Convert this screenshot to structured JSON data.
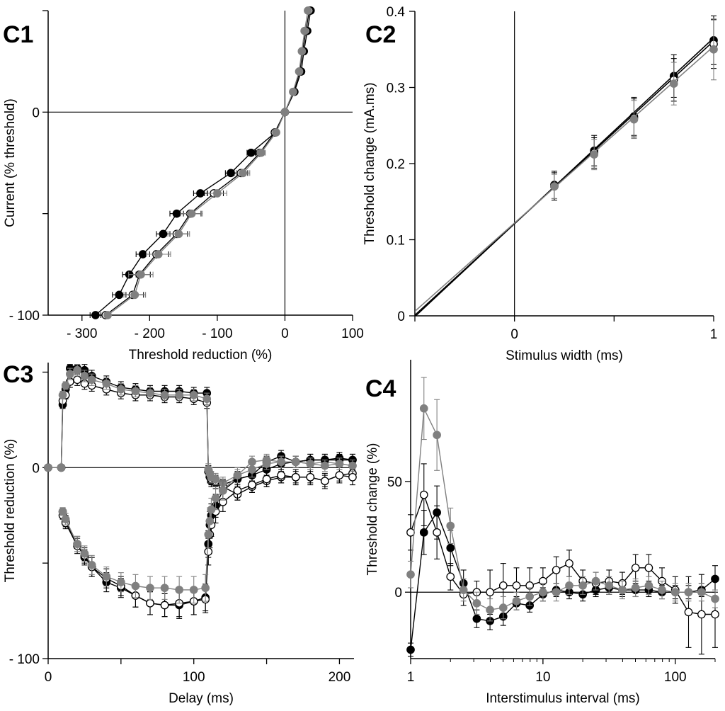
{
  "colors": {
    "black": "#000000",
    "gray": "#808080",
    "white": "#ffffff"
  },
  "series_styles": [
    {
      "name": "filled-black",
      "fill": "#000000",
      "stroke": "#000000"
    },
    {
      "name": "open-white",
      "fill": "#ffffff",
      "stroke": "#000000"
    },
    {
      "name": "filled-gray",
      "fill": "#808080",
      "stroke": "#808080"
    }
  ],
  "chart_data": [
    {
      "panel": "C1",
      "type": "line",
      "xlabel": "Threshold reduction (%)",
      "ylabel": "Current (% threshold)",
      "xlim": [
        -350,
        100
      ],
      "ylim": [
        -100,
        50
      ],
      "xticks": [
        -300,
        -200,
        -100,
        0,
        100
      ],
      "xtick_labels": [
        "- 300",
        "- 200",
        "- 100",
        "0",
        "100"
      ],
      "yticks": [
        -100,
        0
      ],
      "ytick_labels": [
        "- 100",
        "0"
      ],
      "y_minor_ticks": [
        -50,
        50
      ],
      "reference_lines": {
        "x": 0,
        "y": 0
      },
      "error_direction": "x",
      "y": [
        50,
        40,
        30,
        20,
        10,
        0,
        -10,
        -20,
        -30,
        -40,
        -50,
        -60,
        -70,
        -80,
        -90,
        -100
      ],
      "series": [
        {
          "name": "filled-black",
          "x": [
            38,
            33,
            28,
            24,
            14,
            0,
            -14,
            -50,
            -80,
            -125,
            -160,
            -180,
            -210,
            -230,
            -245,
            -280
          ],
          "err": [
            0,
            0,
            0,
            0,
            0,
            0,
            3,
            6,
            8,
            10,
            10,
            10,
            10,
            10,
            10,
            8
          ]
        },
        {
          "name": "open-white",
          "x": [
            36,
            31,
            26,
            22,
            13,
            0,
            -15,
            -37,
            -65,
            -105,
            -140,
            -160,
            -190,
            -215,
            -225,
            -265
          ],
          "err": [
            0,
            0,
            0,
            0,
            0,
            0,
            3,
            6,
            10,
            14,
            16,
            16,
            18,
            16,
            16,
            0
          ]
        },
        {
          "name": "filled-gray",
          "x": [
            34,
            29,
            25,
            21,
            12,
            0,
            -13,
            -35,
            -62,
            -100,
            -138,
            -157,
            -187,
            -213,
            -222,
            -262
          ],
          "err": [
            0,
            0,
            0,
            0,
            0,
            0,
            3,
            6,
            10,
            14,
            16,
            16,
            18,
            18,
            16,
            0
          ]
        }
      ]
    },
    {
      "panel": "C2",
      "type": "scatter",
      "xlabel": "Stimulus width (ms)",
      "ylabel": "Threshold change (mA.ms)",
      "xlim": [
        -0.5,
        1
      ],
      "ylim": [
        0,
        0.4
      ],
      "xticks": [
        0,
        1
      ],
      "xtick_labels": [
        "0",
        "1"
      ],
      "x_minor_ticks": [
        -0.5,
        0.5
      ],
      "yticks": [
        0,
        0.1,
        0.2,
        0.3,
        0.4
      ],
      "ytick_labels": [
        "0",
        "0.1",
        "0.2",
        "0.3",
        "0.4"
      ],
      "reference_lines": {
        "x": 0
      },
      "error_direction": "y",
      "x": [
        0.2,
        0.4,
        0.6,
        0.8,
        1.0
      ],
      "series": [
        {
          "name": "filled-black",
          "values": [
            0.172,
            0.217,
            0.262,
            0.315,
            0.362
          ],
          "err": [
            0.018,
            0.02,
            0.025,
            0.028,
            0.032
          ],
          "fit": {
            "slope": 0.244,
            "intercept": 0.121
          }
        },
        {
          "name": "open-white",
          "values": [
            0.17,
            0.214,
            0.26,
            0.31,
            0.357
          ],
          "err": [
            0.018,
            0.02,
            0.025,
            0.028,
            0.032
          ],
          "fit": {
            "slope": 0.24,
            "intercept": 0.121
          }
        },
        {
          "name": "filled-gray",
          "values": [
            0.17,
            0.212,
            0.258,
            0.305,
            0.35
          ],
          "err": [
            0.016,
            0.02,
            0.025,
            0.028,
            0.04
          ],
          "fit": {
            "slope": 0.232,
            "intercept": 0.122
          }
        }
      ]
    },
    {
      "panel": "C3",
      "type": "line",
      "xlabel": "Delay (ms)",
      "ylabel": "Threshold reduction (%)",
      "xlim": [
        0,
        210
      ],
      "ylim": [
        -100,
        55
      ],
      "xticks": [
        0,
        100,
        200
      ],
      "xtick_labels": [
        "0",
        "100",
        "200"
      ],
      "x_minor_ticks": [
        50,
        150
      ],
      "yticks": [
        -100,
        0
      ],
      "ytick_labels": [
        "- 100",
        "0"
      ],
      "y_minor_ticks": [
        -50,
        50
      ],
      "reference_lines": {
        "y": 0
      },
      "error_direction": "y",
      "series": [
        {
          "name": "filled-black",
          "x": [
            0,
            9,
            10,
            12,
            15,
            20,
            25,
            30,
            40,
            50,
            60,
            70,
            80,
            90,
            100,
            109,
            110,
            111,
            112,
            115,
            120,
            130,
            140,
            150,
            160,
            170,
            180,
            190,
            200,
            209
          ],
          "values": [
            0,
            0,
            33,
            41,
            52,
            52,
            51,
            48,
            45,
            42,
            41,
            40,
            40,
            40,
            39,
            39,
            -2,
            -5,
            -7,
            -8,
            -9,
            -6,
            -4,
            3,
            6,
            3,
            4,
            4,
            4,
            4
          ],
          "err": [
            0,
            0,
            2,
            2,
            2,
            2,
            3,
            3,
            3,
            3,
            3,
            3,
            3,
            3,
            3,
            3,
            3,
            3,
            3,
            3,
            3,
            3,
            3,
            3,
            3,
            3,
            3,
            3,
            3,
            3
          ]
        },
        {
          "name": "open-white",
          "x": [
            0,
            9,
            10,
            12,
            15,
            20,
            25,
            30,
            40,
            50,
            60,
            70,
            80,
            90,
            100,
            109,
            110,
            111,
            112,
            115,
            120,
            130,
            140,
            150,
            160,
            170,
            180,
            190,
            200,
            209
          ],
          "values": [
            0,
            0,
            35,
            38,
            45,
            46,
            44,
            43,
            41,
            39,
            38,
            38,
            37,
            37,
            36,
            34,
            -2,
            -4,
            -6,
            -7,
            -10,
            -14,
            -10,
            -7,
            -5,
            -5,
            -5,
            -7,
            -4,
            -3
          ],
          "err": [
            0,
            0,
            2,
            2,
            3,
            3,
            3,
            3,
            3,
            3,
            3,
            3,
            3,
            3,
            3,
            3,
            3,
            3,
            3,
            3,
            3,
            3,
            3,
            3,
            3,
            3,
            3,
            3,
            3,
            3
          ]
        },
        {
          "name": "filled-gray",
          "x": [
            0,
            9,
            10,
            12,
            15,
            20,
            25,
            30,
            40,
            50,
            60,
            70,
            80,
            90,
            100,
            109,
            110,
            111,
            112,
            115,
            120,
            130,
            140,
            150,
            160,
            170,
            180,
            190,
            200,
            209
          ],
          "values": [
            0,
            0,
            38,
            43,
            49,
            51,
            48,
            46,
            44,
            41,
            40,
            39,
            38,
            38,
            38,
            36,
            -1,
            -3,
            -5,
            -6,
            -8,
            -4,
            3,
            4,
            3,
            3,
            2,
            3,
            2,
            1
          ],
          "err": [
            0,
            0,
            2,
            2,
            3,
            3,
            3,
            3,
            3,
            3,
            3,
            3,
            3,
            3,
            3,
            3,
            3,
            3,
            3,
            3,
            3,
            3,
            3,
            3,
            3,
            3,
            3,
            3,
            3,
            3
          ]
        },
        {
          "name": "filled-black",
          "x": [
            10,
            12,
            20,
            25,
            30,
            40,
            50,
            60,
            70,
            80,
            90,
            100,
            108,
            110,
            111,
            112,
            115,
            120,
            130,
            140,
            150,
            160,
            170,
            180,
            190,
            200,
            209
          ],
          "values": [
            -23,
            -28,
            -40,
            -47,
            -52,
            -60,
            -63,
            -67,
            -71,
            -72,
            -72,
            -70,
            -68,
            -40,
            -30,
            -25,
            -20,
            -12,
            -6,
            -4,
            -1,
            2,
            3,
            4,
            4,
            5,
            4
          ],
          "err": [
            2,
            3,
            4,
            4,
            5,
            5,
            5,
            6,
            6,
            6,
            7,
            7,
            7,
            7,
            7,
            6,
            6,
            5,
            4,
            4,
            3,
            3,
            3,
            3,
            3,
            3,
            3
          ]
        },
        {
          "name": "open-white",
          "x": [
            10,
            12,
            20,
            25,
            30,
            40,
            50,
            60,
            70,
            80,
            90,
            100,
            108,
            110,
            111,
            112,
            115,
            120,
            130,
            140,
            150,
            160,
            170,
            180,
            190,
            200,
            209
          ],
          "values": [
            -25,
            -29,
            -41,
            -46,
            -52,
            -58,
            -62,
            -67,
            -71,
            -72,
            -71,
            -70,
            -69,
            -44,
            -35,
            -30,
            -23,
            -18,
            -12,
            -9,
            -6,
            -4,
            -5,
            -5,
            -7,
            -4,
            -5
          ],
          "err": [
            2,
            3,
            4,
            4,
            5,
            5,
            5,
            6,
            6,
            6,
            7,
            7,
            7,
            7,
            7,
            6,
            6,
            5,
            5,
            4,
            4,
            4,
            4,
            4,
            4,
            4,
            4
          ]
        },
        {
          "name": "filled-gray",
          "x": [
            10,
            12,
            20,
            25,
            30,
            40,
            50,
            60,
            70,
            80,
            90,
            100,
            108,
            110,
            111,
            112,
            115,
            120,
            130,
            140,
            150,
            160,
            170,
            180,
            190,
            200,
            209
          ],
          "values": [
            -23,
            -27,
            -40,
            -45,
            -51,
            -57,
            -60,
            -62,
            -63,
            -63,
            -64,
            -64,
            -63,
            -35,
            -28,
            -22,
            -16,
            -12,
            -4,
            -1,
            2,
            3,
            3,
            2,
            1,
            2,
            1
          ],
          "err": [
            2,
            3,
            4,
            4,
            5,
            5,
            5,
            6,
            6,
            6,
            7,
            7,
            7,
            7,
            7,
            6,
            6,
            5,
            4,
            4,
            3,
            3,
            3,
            3,
            3,
            3,
            3
          ]
        }
      ]
    },
    {
      "panel": "C4",
      "type": "line",
      "xlabel": "Interstimulus interval (ms)",
      "ylabel": "Threshold change (%)",
      "xscale": "log",
      "xlim": [
        1,
        200
      ],
      "ylim": [
        -30,
        105
      ],
      "xticks": [
        1,
        10,
        100
      ],
      "xtick_labels": [
        "1",
        "10",
        "100"
      ],
      "yticks": [
        0,
        50
      ],
      "ytick_labels": [
        "0",
        "50"
      ],
      "reference_lines": {
        "y": 0
      },
      "error_direction": "y",
      "x": [
        1,
        1.26,
        1.58,
        2,
        2.51,
        3.16,
        3.98,
        5.01,
        6.31,
        7.94,
        10,
        12.6,
        15.8,
        20,
        25.1,
        31.6,
        39.8,
        50.1,
        63.1,
        79.4,
        100,
        126,
        158,
        200
      ],
      "series": [
        {
          "name": "filled-black",
          "values": [
            -26,
            27,
            36,
            20,
            4,
            -12,
            -13,
            -11,
            -5,
            -6,
            -1,
            1,
            0,
            -1,
            1,
            2,
            1,
            1,
            1,
            0,
            0,
            0,
            1,
            6
          ],
          "err": [
            3,
            10,
            12,
            8,
            6,
            4,
            4,
            4,
            3,
            3,
            3,
            3,
            3,
            3,
            3,
            3,
            3,
            3,
            3,
            3,
            3,
            3,
            3,
            6
          ]
        },
        {
          "name": "open-white",
          "values": [
            27,
            44,
            27,
            7,
            -1,
            0,
            0,
            3,
            3,
            3,
            5,
            10,
            13,
            5,
            4,
            5,
            4,
            11,
            11,
            5,
            1,
            -9,
            -10,
            -10
          ],
          "err": [
            8,
            14,
            12,
            6,
            5,
            5,
            10,
            10,
            8,
            8,
            6,
            6,
            6,
            5,
            5,
            5,
            5,
            6,
            6,
            6,
            6,
            16,
            18,
            15
          ]
        },
        {
          "name": "filled-gray",
          "values": [
            8,
            83,
            71,
            30,
            1,
            -5,
            -8,
            -7,
            -4,
            -2,
            0,
            0,
            3,
            3,
            5,
            3,
            1,
            2,
            3,
            1,
            0,
            0,
            0,
            -3
          ],
          "err": [
            6,
            14,
            16,
            8,
            5,
            5,
            5,
            5,
            4,
            4,
            4,
            4,
            4,
            4,
            4,
            4,
            4,
            4,
            4,
            4,
            4,
            4,
            4,
            4
          ]
        }
      ]
    }
  ]
}
